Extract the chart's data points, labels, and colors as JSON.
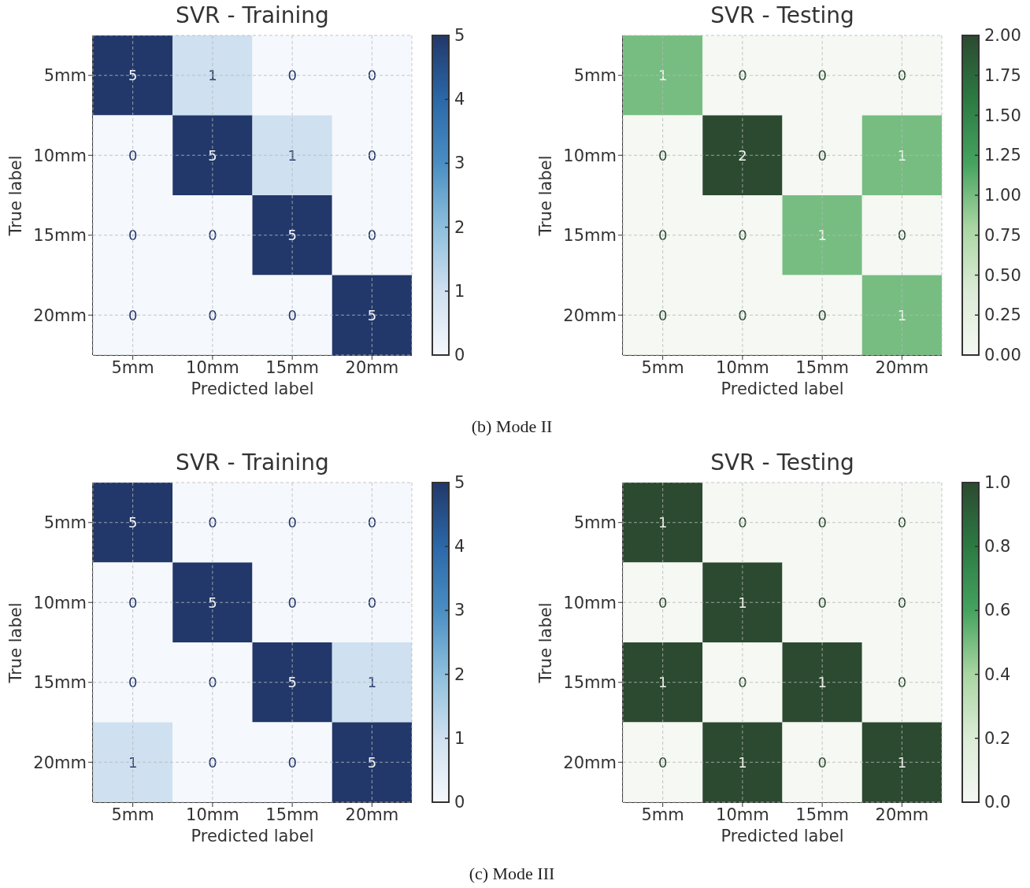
{
  "chart_data": [
    {
      "type": "heatmap",
      "title": "SVR - Training",
      "xlabel": "Predicted label",
      "ylabel": "True label",
      "categories": [
        "5mm",
        "10mm",
        "15mm",
        "20mm"
      ],
      "y_categories": [
        "5mm",
        "10mm",
        "15mm",
        "20mm"
      ],
      "cells": [
        [
          5,
          1,
          0,
          0
        ],
        [
          0,
          5,
          1,
          0
        ],
        [
          0,
          0,
          5,
          0
        ],
        [
          0,
          0,
          0,
          5
        ]
      ],
      "clim": [
        0,
        5
      ],
      "cticks": [
        0,
        1,
        2,
        3,
        4,
        5
      ],
      "colors": [
        "#f5f8fc",
        "#cfe0f0",
        "#8dbfdc",
        "#4a8ec3",
        "#2b68a8",
        "#22386a"
      ],
      "grid": true,
      "data_labels": true,
      "annotations": [
        "(b) Mode II"
      ]
    },
    {
      "type": "heatmap",
      "title": "SVR - Testing",
      "xlabel": "Predicted label",
      "ylabel": "True label",
      "categories": [
        "5mm",
        "10mm",
        "15mm",
        "20mm"
      ],
      "y_categories": [
        "5mm",
        "10mm",
        "15mm",
        "20mm"
      ],
      "cells": [
        [
          1,
          0,
          0,
          0
        ],
        [
          0,
          2,
          0,
          1
        ],
        [
          0,
          0,
          1,
          0
        ],
        [
          0,
          0,
          0,
          1
        ]
      ],
      "clim": [
        0,
        2
      ],
      "cticks": [
        {
          "value": 0,
          "label": "0.00"
        },
        {
          "value": 0.25,
          "label": "0.25"
        },
        {
          "value": 0.5,
          "label": "0.50"
        },
        {
          "value": 0.75,
          "label": "0.75"
        },
        {
          "value": 1,
          "label": "1.00"
        },
        {
          "value": 1.25,
          "label": "1.25"
        },
        {
          "value": 1.5,
          "label": "1.50"
        },
        {
          "value": 1.75,
          "label": "1.75"
        },
        {
          "value": 2,
          "label": "2.00"
        }
      ],
      "colors": [
        "#f5f8f3",
        "#dcecd6",
        "#a9d6a2",
        "#45a35f",
        "#2c7a43",
        "#2b4a30"
      ],
      "grid": true,
      "data_labels": true
    },
    {
      "type": "heatmap",
      "title": "SVR - Training",
      "xlabel": "Predicted label",
      "ylabel": "True label",
      "categories": [
        "5mm",
        "10mm",
        "15mm",
        "20mm"
      ],
      "y_categories": [
        "5mm",
        "10mm",
        "15mm",
        "20mm"
      ],
      "cells": [
        [
          5,
          0,
          0,
          0
        ],
        [
          0,
          5,
          0,
          0
        ],
        [
          0,
          0,
          5,
          1
        ],
        [
          1,
          0,
          0,
          5
        ]
      ],
      "clim": [
        0,
        5
      ],
      "cticks": [
        0,
        1,
        2,
        3,
        4,
        5
      ],
      "colors": [
        "#f5f8fc",
        "#cfe0f0",
        "#8dbfdc",
        "#4a8ec3",
        "#2b68a8",
        "#22386a"
      ],
      "grid": true,
      "data_labels": true,
      "annotations": [
        "(c) Mode III"
      ]
    },
    {
      "type": "heatmap",
      "title": "SVR - Testing",
      "xlabel": "Predicted label",
      "ylabel": "True label",
      "categories": [
        "5mm",
        "10mm",
        "15mm",
        "20mm"
      ],
      "y_categories": [
        "5mm",
        "10mm",
        "15mm",
        "20mm"
      ],
      "cells": [
        [
          1,
          0,
          0,
          0
        ],
        [
          0,
          1,
          0,
          0
        ],
        [
          1,
          0,
          1,
          0
        ],
        [
          0,
          1,
          0,
          1
        ]
      ],
      "clim": [
        0,
        1
      ],
      "cticks": [
        {
          "value": 0,
          "label": "0.0"
        },
        0.2,
        0.4,
        0.6,
        0.8,
        {
          "value": 1,
          "label": "1.0"
        }
      ],
      "colors": [
        "#f5f8f3",
        "#dcecd6",
        "#a9d6a2",
        "#45a35f",
        "#2c7a43",
        "#2b4a30"
      ],
      "grid": true,
      "data_labels": true
    }
  ]
}
